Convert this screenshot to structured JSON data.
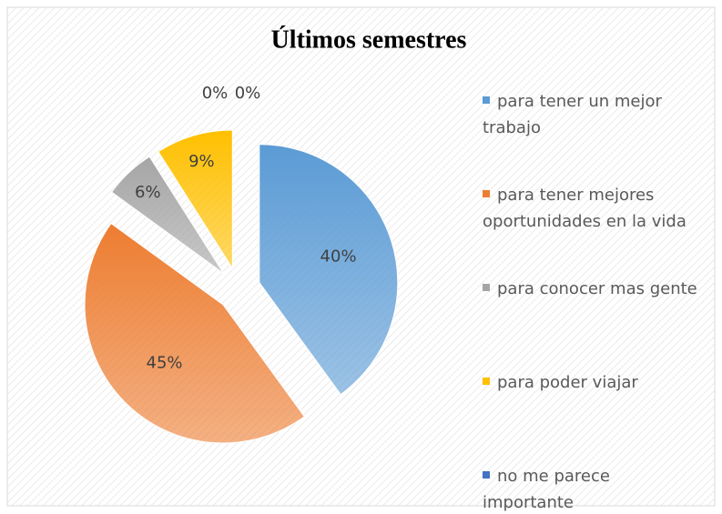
{
  "chart_data": {
    "type": "pie",
    "title": "Últimos semestres",
    "categories": [
      "para tener un mejor trabajo",
      "para tener mejores oportunidades en la vida",
      "para conocer mas gente",
      "para poder viajar",
      "no me parece importante",
      null
    ],
    "values": [
      40,
      45,
      6,
      9,
      0,
      0
    ],
    "value_labels": [
      "40%",
      "45%",
      "6%",
      "9%",
      "0%",
      "0%"
    ],
    "colors": [
      "#5b9bd5",
      "#ed7d31",
      "#a5a5a5",
      "#ffc000",
      "#4472c4",
      "#70ad47"
    ],
    "exploded": true,
    "legend": "right"
  }
}
